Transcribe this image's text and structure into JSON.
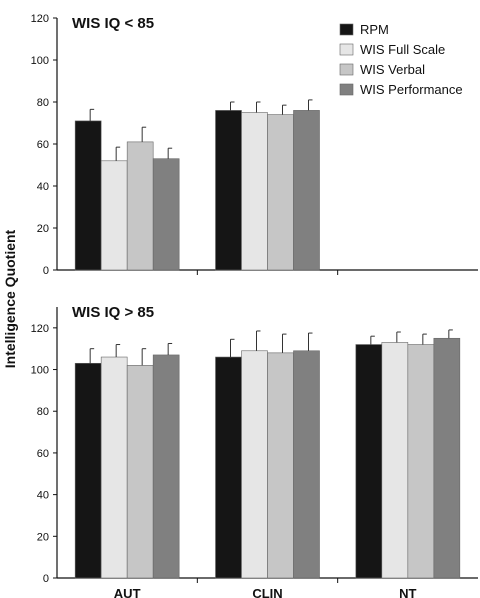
{
  "chart_data": {
    "type": "bar",
    "ylabel": "Intelligence Quotient",
    "categories": [
      "AUT",
      "CLIN",
      "NT"
    ],
    "legend_position": "top-right",
    "series_meta": [
      {
        "name": "RPM",
        "color": "#151515"
      },
      {
        "name": "WIS Full Scale",
        "color": "#e6e6e6"
      },
      {
        "name": "WIS Verbal",
        "color": "#c6c6c6"
      },
      {
        "name": "WIS Performance",
        "color": "#808080"
      }
    ],
    "panels": [
      {
        "title": "WIS IQ < 85",
        "ylim": [
          0,
          120
        ],
        "yticks": [
          0,
          20,
          40,
          60,
          80,
          100,
          120
        ],
        "series": [
          {
            "name": "RPM",
            "values": [
              71,
              76,
              null
            ],
            "errors": [
              5.5,
              4,
              null
            ]
          },
          {
            "name": "WIS Full Scale",
            "values": [
              52,
              75,
              null
            ],
            "errors": [
              6.5,
              5,
              null
            ]
          },
          {
            "name": "WIS Verbal",
            "values": [
              61,
              74,
              null
            ],
            "errors": [
              7,
              4.5,
              null
            ]
          },
          {
            "name": "WIS Performance",
            "values": [
              53,
              76,
              null
            ],
            "errors": [
              5,
              5,
              null
            ]
          }
        ]
      },
      {
        "title": "WIS IQ > 85",
        "ylim": [
          0,
          130
        ],
        "yticks": [
          0,
          20,
          40,
          60,
          80,
          100,
          120
        ],
        "series": [
          {
            "name": "RPM",
            "values": [
              103,
              106,
              112
            ],
            "errors": [
              7,
              8.5,
              4
            ]
          },
          {
            "name": "WIS Full Scale",
            "values": [
              106,
              109,
              113
            ],
            "errors": [
              6,
              9.5,
              5
            ]
          },
          {
            "name": "WIS Verbal",
            "values": [
              102,
              108,
              112
            ],
            "errors": [
              8,
              9,
              5
            ]
          },
          {
            "name": "WIS Performance",
            "values": [
              107,
              109,
              115
            ],
            "errors": [
              5.5,
              8.5,
              4
            ]
          }
        ]
      }
    ]
  }
}
